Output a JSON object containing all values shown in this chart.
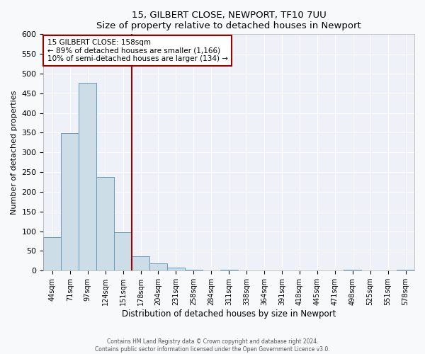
{
  "title": "15, GILBERT CLOSE, NEWPORT, TF10 7UU",
  "subtitle": "Size of property relative to detached houses in Newport",
  "xlabel": "Distribution of detached houses by size in Newport",
  "ylabel": "Number of detached properties",
  "bar_labels": [
    "44sqm",
    "71sqm",
    "97sqm",
    "124sqm",
    "151sqm",
    "178sqm",
    "204sqm",
    "231sqm",
    "258sqm",
    "284sqm",
    "311sqm",
    "338sqm",
    "364sqm",
    "391sqm",
    "418sqm",
    "445sqm",
    "471sqm",
    "498sqm",
    "525sqm",
    "551sqm",
    "578sqm"
  ],
  "bar_values": [
    84,
    349,
    476,
    237,
    97,
    36,
    19,
    8,
    2,
    0,
    3,
    0,
    0,
    0,
    0,
    0,
    0,
    2,
    0,
    0,
    2
  ],
  "bar_color": "#ccdde8",
  "bar_edgecolor": "#6699bb",
  "vline_color": "#990000",
  "annotation_line1": "15 GILBERT CLOSE: 158sqm",
  "annotation_line2": "← 89% of detached houses are smaller (1,166)",
  "annotation_line3": "10% of semi-detached houses are larger (134) →",
  "annotation_box_edgecolor": "#990000",
  "ylim": [
    0,
    600
  ],
  "yticks": [
    0,
    50,
    100,
    150,
    200,
    250,
    300,
    350,
    400,
    450,
    500,
    550,
    600
  ],
  "footnote_line1": "Contains HM Land Registry data © Crown copyright and database right 2024.",
  "footnote_line2": "Contains public sector information licensed under the Open Government Licence v3.0.",
  "fig_facecolor": "#f8f9fa",
  "plot_facecolor": "#eef2f8",
  "grid_color": "#ffffff"
}
